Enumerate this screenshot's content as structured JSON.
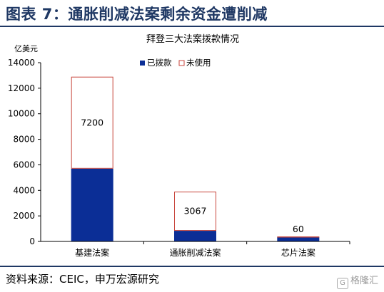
{
  "figure": {
    "title": "图表 7：通胀削减法案剩余资金遭削减",
    "source": "资料来源：CEIC，申万宏源研究",
    "watermark_text": "格隆汇",
    "watermark_icon": "G"
  },
  "chart_data": {
    "type": "bar",
    "stacked": true,
    "title": "拜登三大法案拨款情况",
    "unit": "亿美元",
    "categories": [
      "基建法案",
      "通胀削减法案",
      "芯片法案"
    ],
    "series": [
      {
        "name": "已拨款",
        "values": [
          5700,
          833,
          330
        ],
        "color": "#0b2e96",
        "style": "filled"
      },
      {
        "name": "未使用",
        "values": [
          7200,
          3067,
          60
        ],
        "color": "#c8463c",
        "style": "outline"
      }
    ],
    "data_labels": [
      "7200",
      "3067",
      "60"
    ],
    "ylim": [
      0,
      14000
    ],
    "yticks": [
      "0",
      "2000",
      "4000",
      "6000",
      "8000",
      "10000",
      "12000",
      "14000"
    ],
    "grid": false,
    "legend_position": "top-right"
  }
}
